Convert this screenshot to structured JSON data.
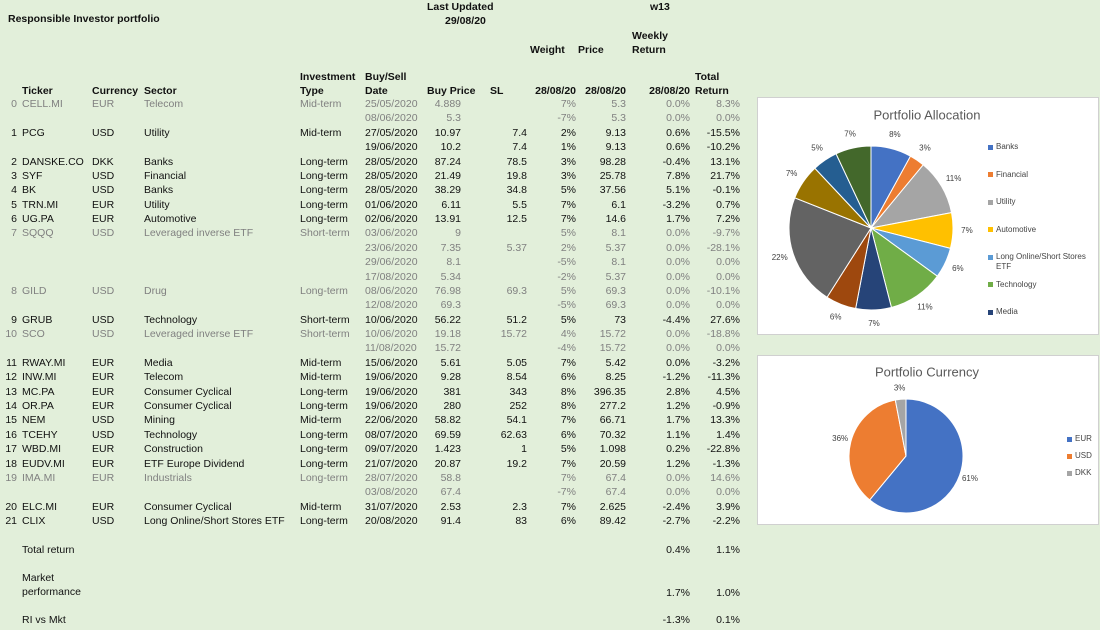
{
  "header": {
    "title": "Responsible Investor portfolio",
    "last_updated_label": "Last Updated",
    "last_updated": "29/08/20",
    "week": "w13"
  },
  "table": {
    "columns": [
      "Ticker",
      "Currency",
      "Sector",
      "Investment Type",
      "Buy/Sell Date",
      "Buy Price",
      "SL",
      "Weight",
      "Price",
      "Weekly Return",
      "Total Return"
    ],
    "price_dates": [
      "28/08/20",
      "28/08/20",
      "28/08/20"
    ],
    "rows": [
      {
        "cells": [
          0,
          "CELL.MI",
          "EUR",
          "Telecom",
          "Mid-term",
          "25/05/2020",
          "4.889",
          null,
          "7%",
          "5.3",
          "0.0%",
          "8.3%"
        ],
        "muted": true
      },
      {
        "cells": [
          null,
          null,
          null,
          null,
          null,
          "08/06/2020",
          "5.3",
          null,
          "-7%",
          "5.3",
          "0.0%",
          "0.0%"
        ],
        "muted": true
      },
      {
        "cells": [
          1,
          "PCG",
          "USD",
          "Utility",
          "Mid-term",
          "27/05/2020",
          "10.97",
          "7.4",
          "2%",
          "9.13",
          "0.6%",
          "-15.5%"
        ],
        "muted": false
      },
      {
        "cells": [
          null,
          null,
          null,
          null,
          null,
          "19/06/2020",
          "10.2",
          "7.4",
          "1%",
          "9.13",
          "0.6%",
          "-10.2%"
        ],
        "muted": false
      },
      {
        "cells": [
          2,
          "DANSKE.CO",
          "DKK",
          "Banks",
          "Long-term",
          "28/05/2020",
          "87.24",
          "78.5",
          "3%",
          "98.28",
          "-0.4%",
          "13.1%"
        ],
        "muted": false
      },
      {
        "cells": [
          3,
          "SYF",
          "USD",
          "Financial",
          "Long-term",
          "28/05/2020",
          "21.49",
          "19.8",
          "3%",
          "25.78",
          "7.8%",
          "21.7%"
        ],
        "muted": false
      },
      {
        "cells": [
          4,
          "BK",
          "USD",
          "Banks",
          "Long-term",
          "28/05/2020",
          "38.29",
          "34.8",
          "5%",
          "37.56",
          "5.1%",
          "-0.1%"
        ],
        "muted": false
      },
      {
        "cells": [
          5,
          "TRN.MI",
          "EUR",
          "Utility",
          "Long-term",
          "01/06/2020",
          "6.11",
          "5.5",
          "7%",
          "6.1",
          "-3.2%",
          "0.7%"
        ],
        "muted": false
      },
      {
        "cells": [
          6,
          "UG.PA",
          "EUR",
          "Automotive",
          "Long-term",
          "02/06/2020",
          "13.91",
          "12.5",
          "7%",
          "14.6",
          "1.7%",
          "7.2%"
        ],
        "muted": false
      },
      {
        "cells": [
          7,
          "SQQQ",
          "USD",
          "Leveraged inverse ETF",
          "Short-term",
          "03/06/2020",
          "9",
          null,
          "5%",
          "8.1",
          "0.0%",
          "-9.7%"
        ],
        "muted": true
      },
      {
        "cells": [
          null,
          null,
          null,
          null,
          null,
          "23/06/2020",
          "7.35",
          "5.37",
          "2%",
          "5.37",
          "0.0%",
          "-28.1%"
        ],
        "muted": true
      },
      {
        "cells": [
          null,
          null,
          null,
          null,
          null,
          "29/06/2020",
          "8.1",
          null,
          "-5%",
          "8.1",
          "0.0%",
          "0.0%"
        ],
        "muted": true
      },
      {
        "cells": [
          null,
          null,
          null,
          null,
          null,
          "17/08/2020",
          "5.34",
          null,
          "-2%",
          "5.37",
          "0.0%",
          "0.0%"
        ],
        "muted": true
      },
      {
        "cells": [
          8,
          "GILD",
          "USD",
          "Drug",
          "Long-term",
          "08/06/2020",
          "76.98",
          "69.3",
          "5%",
          "69.3",
          "0.0%",
          "-10.1%"
        ],
        "muted": true
      },
      {
        "cells": [
          null,
          null,
          null,
          null,
          null,
          "12/08/2020",
          "69.3",
          null,
          "-5%",
          "69.3",
          "0.0%",
          "0.0%"
        ],
        "muted": true
      },
      {
        "cells": [
          9,
          "GRUB",
          "USD",
          "Technology",
          "Short-term",
          "10/06/2020",
          "56.22",
          "51.2",
          "5%",
          "73",
          "-4.4%",
          "27.6%"
        ],
        "muted": false
      },
      {
        "cells": [
          10,
          "SCO",
          "USD",
          "Leveraged inverse ETF",
          "Short-term",
          "10/06/2020",
          "19.18",
          "15.72",
          "4%",
          "15.72",
          "0.0%",
          "-18.8%"
        ],
        "muted": true
      },
      {
        "cells": [
          null,
          null,
          null,
          null,
          null,
          "11/08/2020",
          "15.72",
          null,
          "-4%",
          "15.72",
          "0.0%",
          "0.0%"
        ],
        "muted": true
      },
      {
        "cells": [
          11,
          "RWAY.MI",
          "EUR",
          "Media",
          "Mid-term",
          "15/06/2020",
          "5.61",
          "5.05",
          "7%",
          "5.42",
          "0.0%",
          "-3.2%"
        ],
        "muted": false
      },
      {
        "cells": [
          12,
          "INW.MI",
          "EUR",
          "Telecom",
          "Mid-term",
          "19/06/2020",
          "9.28",
          "8.54",
          "6%",
          "8.25",
          "-1.2%",
          "-11.3%"
        ],
        "muted": false
      },
      {
        "cells": [
          13,
          "MC.PA",
          "EUR",
          "Consumer Cyclical",
          "Long-term",
          "19/06/2020",
          "381",
          "343",
          "8%",
          "396.35",
          "2.8%",
          "4.5%"
        ],
        "muted": false
      },
      {
        "cells": [
          14,
          "OR.PA",
          "EUR",
          "Consumer Cyclical",
          "Long-term",
          "19/06/2020",
          "280",
          "252",
          "8%",
          "277.2",
          "1.2%",
          "-0.9%"
        ],
        "muted": false
      },
      {
        "cells": [
          15,
          "NEM",
          "USD",
          "Mining",
          "Mid-term",
          "22/06/2020",
          "58.82",
          "54.1",
          "7%",
          "66.71",
          "1.7%",
          "13.3%"
        ],
        "muted": false
      },
      {
        "cells": [
          16,
          "TCEHY",
          "USD",
          "Technology",
          "Long-term",
          "08/07/2020",
          "69.59",
          "62.63",
          "6%",
          "70.32",
          "1.1%",
          "1.4%"
        ],
        "muted": false
      },
      {
        "cells": [
          17,
          "WBD.MI",
          "EUR",
          "Construction",
          "Long-term",
          "09/07/2020",
          "1.423",
          "1",
          "5%",
          "1.098",
          "0.2%",
          "-22.8%"
        ],
        "muted": false
      },
      {
        "cells": [
          18,
          "EUDV.MI",
          "EUR",
          "ETF Europe Dividend",
          "Long-term",
          "21/07/2020",
          "20.87",
          "19.2",
          "7%",
          "20.59",
          "1.2%",
          "-1.3%"
        ],
        "muted": false
      },
      {
        "cells": [
          19,
          "IMA.MI",
          "EUR",
          "Industrials",
          "Long-term",
          "28/07/2020",
          "58.8",
          null,
          "7%",
          "67.4",
          "0.0%",
          "14.6%"
        ],
        "muted": true
      },
      {
        "cells": [
          null,
          null,
          null,
          null,
          null,
          "03/08/2020",
          "67.4",
          null,
          "-7%",
          "67.4",
          "0.0%",
          "0.0%"
        ],
        "muted": true
      },
      {
        "cells": [
          20,
          "ELC.MI",
          "EUR",
          "Consumer Cyclical",
          "Mid-term",
          "31/07/2020",
          "2.53",
          "2.3",
          "7%",
          "2.625",
          "-2.4%",
          "3.9%"
        ],
        "muted": false
      },
      {
        "cells": [
          21,
          "CLIX",
          "USD",
          "Long Online/Short Stores ETF",
          "Long-term",
          "20/08/2020",
          "91.4",
          "83",
          "6%",
          "89.42",
          "-2.7%",
          "-2.2%"
        ],
        "muted": false
      }
    ]
  },
  "summary": [
    {
      "label": "Total return",
      "values": [
        "0.4%",
        "1.1%"
      ]
    },
    {
      "label": "Market performance",
      "values": [
        "1.7%",
        "1.0%"
      ]
    },
    {
      "label": "RI vs Mkt",
      "values": [
        "-1.3%",
        "0.1%"
      ]
    }
  ],
  "chart_data": [
    {
      "type": "pie",
      "title": "Portfolio Allocation",
      "categories": [
        "Banks",
        "Financial",
        "Utility",
        "Automotive",
        "Long Online/Short Stores ETF",
        "Technology",
        "Media",
        null,
        null,
        null,
        null,
        null
      ],
      "values": [
        8,
        3,
        11,
        7,
        6,
        11,
        7,
        6,
        22,
        7,
        5,
        7
      ],
      "value_labels": [
        "8%",
        "3%",
        "11%",
        "7%",
        "6%",
        "11%",
        "7%",
        "6%",
        "22%",
        "7%",
        "5%",
        "7%"
      ],
      "colors": [
        "#4472c4",
        "#ed7d31",
        "#a5a5a5",
        "#ffc000",
        "#5b9bd5",
        "#70ad47",
        "#264478",
        "#9e480e",
        "#636363",
        "#997300",
        "#255e91",
        "#43682b"
      ]
    },
    {
      "type": "pie",
      "title": "Portfolio Currency",
      "categories": [
        "EUR",
        "USD",
        "DKK"
      ],
      "values": [
        61,
        36,
        3
      ],
      "value_labels": [
        "61%",
        "36%",
        "3%"
      ],
      "colors": [
        "#4472c4",
        "#ed7d31",
        "#a5a5a5"
      ]
    }
  ]
}
